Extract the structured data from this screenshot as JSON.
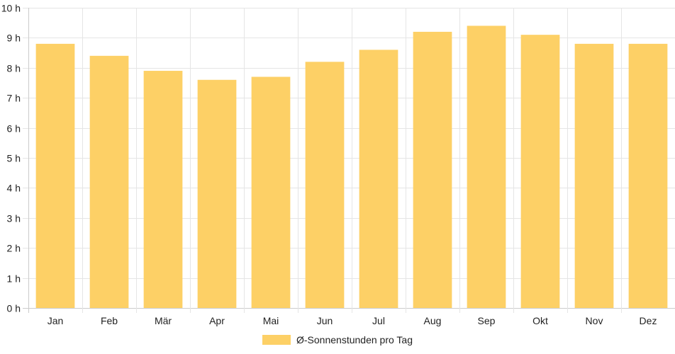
{
  "chart_data": {
    "type": "bar",
    "categories": [
      "Jan",
      "Feb",
      "Mär",
      "Apr",
      "Mai",
      "Jun",
      "Jul",
      "Aug",
      "Sep",
      "Okt",
      "Nov",
      "Dez"
    ],
    "series": [
      {
        "name": "Ø-Sonnenstunden pro Tag",
        "values": [
          8.8,
          8.4,
          7.9,
          7.6,
          7.7,
          8.2,
          8.6,
          9.2,
          9.4,
          9.1,
          8.8,
          8.8
        ],
        "color": "#fdd066"
      }
    ],
    "y_ticks": [
      "0 h",
      "1 h",
      "2 h",
      "3 h",
      "4 h",
      "5 h",
      "6 h",
      "7 h",
      "8 h",
      "9 h",
      "10 h"
    ],
    "ylim": [
      0,
      10
    ],
    "grid": true,
    "legend_position": "bottom",
    "colors": {
      "bar": "#fdd066",
      "grid": "#e5e5e5",
      "axis": "#cccccc",
      "text": "#222222"
    }
  }
}
